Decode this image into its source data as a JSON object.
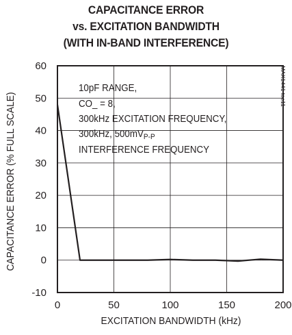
{
  "chart_data": {
    "type": "line",
    "title_lines": [
      "CAPACITANCE ERROR",
      "vs. EXCITATION BANDWIDTH",
      "(WITH IN-BAND INTERFERENCE)"
    ],
    "xlabel": "EXCITATION BANDWIDTH (kHz)",
    "ylabel": "CAPACITANCE ERROR (% FULL SCALE)",
    "xlim": [
      0,
      200
    ],
    "ylim": [
      -10,
      60
    ],
    "x_ticks": [
      0,
      50,
      100,
      150,
      200
    ],
    "y_ticks": [
      -10,
      0,
      10,
      20,
      30,
      40,
      50,
      60
    ],
    "x_tick_labels": [
      "0",
      "50",
      "100",
      "150",
      "200"
    ],
    "y_tick_labels": [
      "-10",
      "0",
      "10",
      "20",
      "30",
      "40",
      "50",
      "60"
    ],
    "grid": true,
    "line_color": "#231f20",
    "series": [
      {
        "x": [
          0,
          20,
          40,
          60,
          80,
          100,
          120,
          140,
          160,
          180,
          200
        ],
        "y": [
          48,
          0,
          0,
          0,
          0,
          0.2,
          0,
          0,
          -0.3,
          0.3,
          0
        ]
      }
    ],
    "annotation_lines": [
      "10pF RANGE,",
      "CO_ = 8,",
      "300kHz EXCITATION FREQUENCY,",
      "300kHz, 500mV",
      "INTERFERENCE FREQUENCY"
    ],
    "annotation_subscript": "P-P",
    "part_number": "MAX1441 toc11"
  }
}
